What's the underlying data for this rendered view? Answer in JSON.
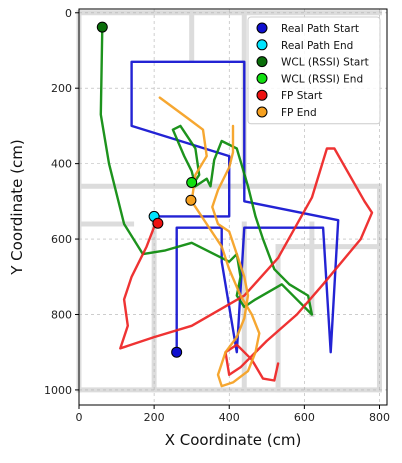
{
  "chart_data": {
    "type": "line",
    "xlabel": "X Coordinate (cm)",
    "ylabel": "Y Coordinate (cm)",
    "xlim": [
      0,
      820
    ],
    "ylim": [
      1040,
      -10
    ],
    "xticks": [
      0,
      200,
      400,
      600,
      800
    ],
    "yticks": [
      0,
      200,
      400,
      600,
      800,
      1000
    ],
    "grid": true,
    "legend_position": "top-right",
    "legend": [
      {
        "label": "Real Path Start",
        "color": "#1010d0"
      },
      {
        "label": "Real Path End",
        "color": "#00e5ff"
      },
      {
        "label": "WCL (RSSI) Start",
        "color": "#0a6e0a"
      },
      {
        "label": "WCL (RSSI) End",
        "color": "#11e011"
      },
      {
        "label": "FP Start",
        "color": "#ee1111"
      },
      {
        "label": "FP End",
        "color": "#f5a020"
      }
    ],
    "series": [
      {
        "color": "#1010d0",
        "points": [
          [
            260,
            900
          ],
          [
            260,
            570
          ],
          [
            380,
            570
          ],
          [
            380,
            660
          ],
          [
            420,
            900
          ],
          [
            440,
            570
          ],
          [
            650,
            570
          ],
          [
            670,
            900
          ],
          [
            690,
            550
          ],
          [
            440,
            500
          ],
          [
            440,
            130
          ],
          [
            140,
            130
          ],
          [
            140,
            300
          ],
          [
            400,
            380
          ],
          [
            400,
            540
          ],
          [
            200,
            540
          ]
        ]
      },
      {
        "color": "#0a8a0a",
        "points": [
          [
            62,
            38
          ],
          [
            58,
            270
          ],
          [
            80,
            400
          ],
          [
            120,
            560
          ],
          [
            170,
            640
          ],
          [
            230,
            630
          ],
          [
            300,
            610
          ],
          [
            400,
            660
          ],
          [
            420,
            640
          ],
          [
            430,
            700
          ],
          [
            420,
            750
          ],
          [
            440,
            780
          ],
          [
            470,
            760
          ],
          [
            540,
            720
          ],
          [
            590,
            770
          ],
          [
            620,
            800
          ],
          [
            610,
            750
          ],
          [
            560,
            720
          ],
          [
            520,
            680
          ],
          [
            490,
            600
          ],
          [
            470,
            540
          ],
          [
            450,
            460
          ],
          [
            420,
            360
          ],
          [
            380,
            340
          ],
          [
            360,
            390
          ],
          [
            350,
            460
          ],
          [
            340,
            440
          ],
          [
            310,
            460
          ],
          [
            300,
            420
          ],
          [
            280,
            380
          ],
          [
            250,
            310
          ],
          [
            270,
            300
          ],
          [
            290,
            330
          ],
          [
            310,
            360
          ],
          [
            320,
            430
          ],
          [
            300,
            460
          ]
        ]
      },
      {
        "color": "#ee2222",
        "points": [
          [
            205,
            555
          ],
          [
            180,
            620
          ],
          [
            140,
            700
          ],
          [
            120,
            760
          ],
          [
            130,
            830
          ],
          [
            110,
            890
          ],
          [
            200,
            860
          ],
          [
            300,
            830
          ],
          [
            440,
            750
          ],
          [
            530,
            650
          ],
          [
            620,
            490
          ],
          [
            660,
            360
          ],
          [
            680,
            360
          ],
          [
            760,
            500
          ],
          [
            780,
            530
          ],
          [
            750,
            600
          ],
          [
            650,
            720
          ],
          [
            580,
            800
          ],
          [
            500,
            870
          ],
          [
            430,
            940
          ],
          [
            400,
            960
          ],
          [
            390,
            900
          ],
          [
            420,
            880
          ],
          [
            460,
            920
          ],
          [
            490,
            970
          ],
          [
            520,
            975
          ],
          [
            530,
            930
          ]
        ]
      },
      {
        "color": "#f5a020",
        "points": [
          [
            215,
            225
          ],
          [
            290,
            280
          ],
          [
            330,
            310
          ],
          [
            340,
            380
          ],
          [
            310,
            430
          ],
          [
            300,
            500
          ],
          [
            340,
            560
          ],
          [
            380,
            620
          ],
          [
            400,
            680
          ],
          [
            430,
            750
          ],
          [
            460,
            800
          ],
          [
            480,
            850
          ],
          [
            470,
            900
          ],
          [
            450,
            950
          ],
          [
            410,
            980
          ],
          [
            380,
            990
          ],
          [
            370,
            960
          ],
          [
            390,
            900
          ],
          [
            420,
            860
          ],
          [
            440,
            810
          ],
          [
            450,
            750
          ],
          [
            440,
            700
          ],
          [
            420,
            640
          ],
          [
            400,
            580
          ],
          [
            370,
            560
          ],
          [
            355,
            515
          ],
          [
            370,
            470
          ],
          [
            400,
            410
          ],
          [
            410,
            370
          ],
          [
            410,
            300
          ]
        ]
      }
    ],
    "markers": [
      {
        "x": 260,
        "y": 900,
        "color": "#1010d0"
      },
      {
        "x": 200,
        "y": 540,
        "color": "#00e5ff"
      },
      {
        "x": 62,
        "y": 38,
        "color": "#0a6e0a"
      },
      {
        "x": 300,
        "y": 450,
        "color": "#11e011"
      },
      {
        "x": 210,
        "y": 558,
        "color": "#ee1111"
      },
      {
        "x": 298,
        "y": 497,
        "color": "#f5a020"
      }
    ],
    "floorplan_walls": [
      [
        [
          0,
          0
        ],
        [
          800,
          0
        ]
      ],
      [
        [
          0,
          0
        ],
        [
          0,
          1000
        ]
      ],
      [
        [
          0,
          1000
        ],
        [
          800,
          1000
        ]
      ],
      [
        [
          800,
          460
        ],
        [
          800,
          1000
        ]
      ],
      [
        [
          0,
          460
        ],
        [
          800,
          460
        ]
      ],
      [
        [
          440,
          0
        ],
        [
          440,
          460
        ]
      ],
      [
        [
          440,
          560
        ],
        [
          440,
          1000
        ]
      ],
      [
        [
          300,
          0
        ],
        [
          300,
          120
        ]
      ],
      [
        [
          200,
          560
        ],
        [
          200,
          1000
        ]
      ],
      [
        [
          530,
          620
        ],
        [
          530,
          1000
        ]
      ],
      [
        [
          620,
          560
        ],
        [
          620,
          800
        ]
      ],
      [
        [
          0,
          560
        ],
        [
          140,
          560
        ]
      ],
      [
        [
          530,
          620
        ],
        [
          800,
          620
        ]
      ]
    ]
  }
}
